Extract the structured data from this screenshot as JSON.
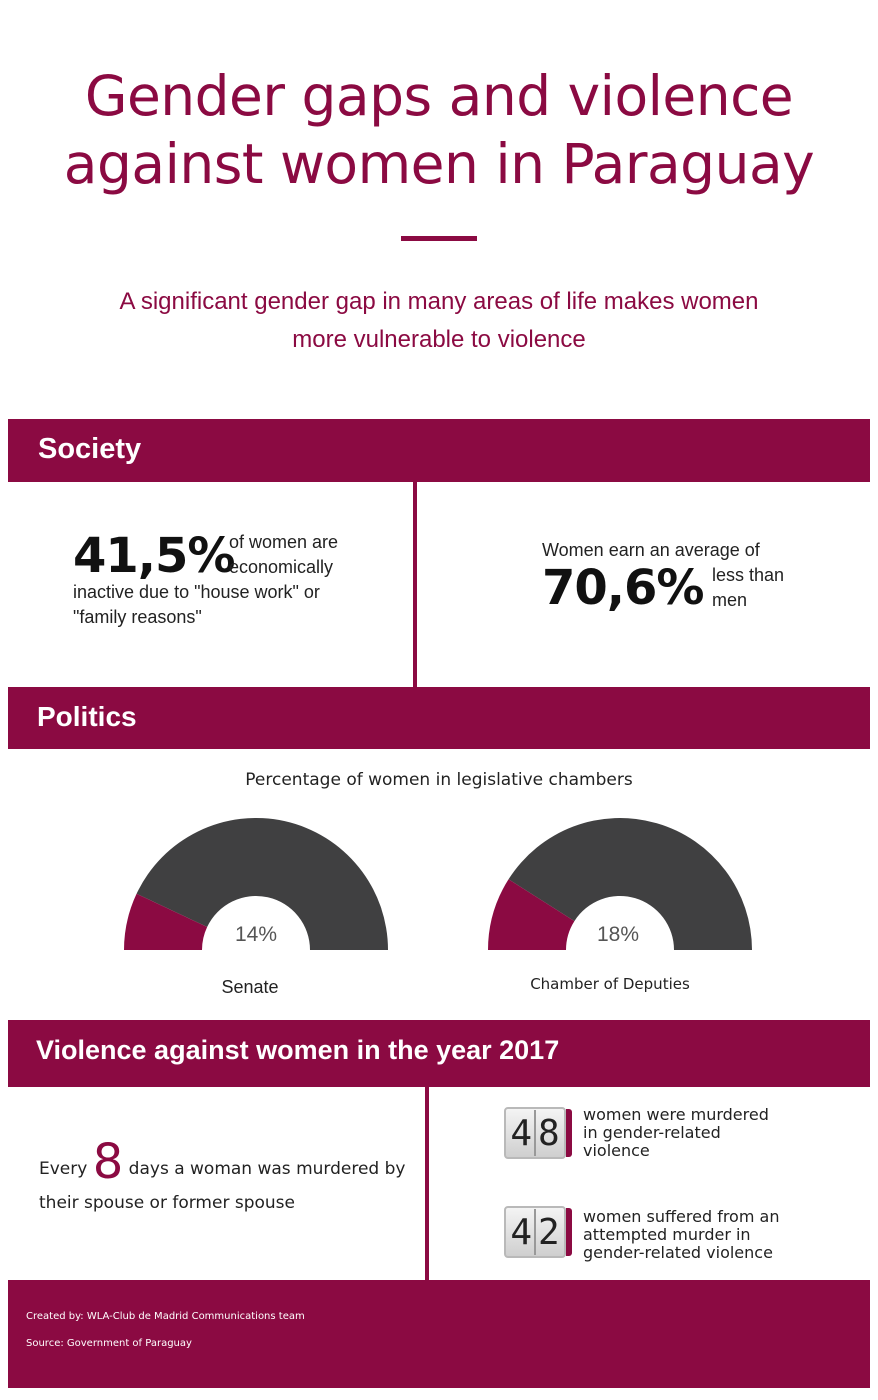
{
  "header": {
    "title_line1": "Gender gaps and violence",
    "title_line2": "against women in Paraguay",
    "subtitle_line1": "A significant gender gap in many areas of life makes women",
    "subtitle_line2": "more vulnerable to violence"
  },
  "society": {
    "heading": "Society",
    "left": {
      "value": "41,5%",
      "text_a_line1": "of women are",
      "text_a_line2": "economically",
      "text_b_line1": "inactive due to \"house work\" or",
      "text_b_line2": "\"family reasons\""
    },
    "right": {
      "lead": "Women earn an average of",
      "value": "70,6%",
      "tail_line1": "less than",
      "tail_line2": "men"
    }
  },
  "politics": {
    "heading": "Politics",
    "caption": "Percentage of women in legislative chambers",
    "chambers": [
      {
        "label": "Senate",
        "percent_label": "14%",
        "percent": 14
      },
      {
        "label": "Chamber of Deputies",
        "percent_label": "18%",
        "percent": 18
      }
    ]
  },
  "violence": {
    "heading": "Violence against women in the year 2017",
    "every_prefix": "Every",
    "every_number": "8",
    "every_suffix": "days a woman was murdered by",
    "every_line2": "their spouse or former spouse",
    "stats": [
      {
        "digits": [
          "4",
          "8"
        ],
        "line1": "women were murdered",
        "line2": "in gender-related",
        "line3": "violence"
      },
      {
        "digits": [
          "4",
          "2"
        ],
        "line1": "women suffered from an",
        "line2": "attempted murder in",
        "line3": "gender-related violence"
      }
    ]
  },
  "footer": {
    "created_by": "Created by: WLA-Club de Madrid Communications team",
    "source": "Source: Government of Paraguay"
  },
  "colors": {
    "accent": "#8b0a42",
    "gauge_dark": "#404041"
  }
}
